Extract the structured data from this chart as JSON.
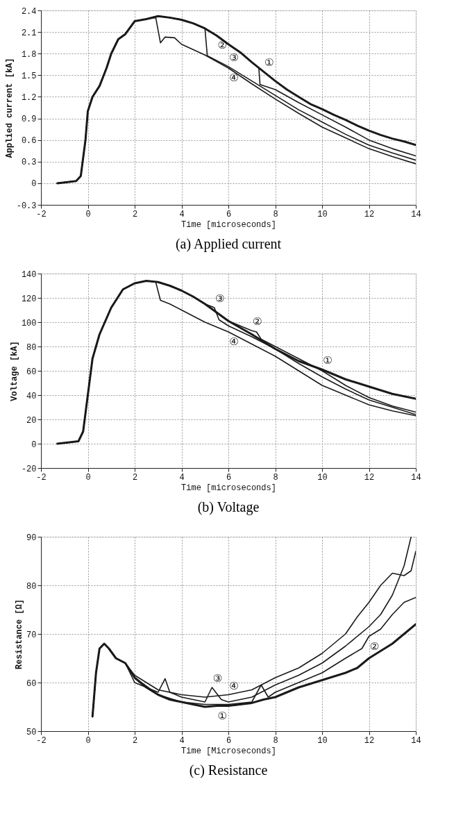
{
  "chart_data": [
    {
      "type": "line",
      "title": "(a) Applied current",
      "xlabel": "Time [microseconds]",
      "ylabel": "Applied current [kA]",
      "xlim": [
        -2,
        14
      ],
      "xticks": [
        -2,
        0,
        2,
        4,
        6,
        8,
        10,
        12,
        14
      ],
      "ylim": [
        -0.3,
        2.4
      ],
      "yticks": [
        -0.3,
        0,
        0.3,
        0.6,
        0.9,
        1.2,
        1.5,
        1.8,
        2.1,
        2.4
      ],
      "grid": true,
      "line_style": "solid",
      "series": [
        {
          "name": "①",
          "color": "#1a1a1a",
          "x": [
            -1.3,
            -0.5,
            -0.3,
            -0.1,
            0,
            0.2,
            0.5,
            0.8,
            1,
            1.3,
            1.6,
            2,
            2.5,
            3,
            3.5,
            4,
            4.5,
            5,
            5.5,
            6,
            6.5,
            7,
            7.5,
            8,
            8.5,
            9,
            9.5,
            10,
            10.5,
            11,
            11.5,
            12,
            12.5,
            13,
            13.5,
            14
          ],
          "values": [
            0,
            0.03,
            0.1,
            0.6,
            1.0,
            1.2,
            1.35,
            1.6,
            1.8,
            2.0,
            2.07,
            2.25,
            2.28,
            2.32,
            2.3,
            2.27,
            2.22,
            2.15,
            2.05,
            1.93,
            1.82,
            1.68,
            1.55,
            1.42,
            1.3,
            1.2,
            1.1,
            1.03,
            0.95,
            0.88,
            0.8,
            0.73,
            0.67,
            0.62,
            0.58,
            0.53
          ]
        },
        {
          "name": "②",
          "color": "#1a1a1a",
          "x": [
            -1.3,
            -0.5,
            -0.3,
            -0.1,
            0,
            0.2,
            0.5,
            0.8,
            1,
            1.3,
            1.6,
            2,
            2.5,
            3,
            3.5,
            4,
            4.5,
            5,
            5.5,
            6,
            6.5,
            7,
            7.3,
            7.35,
            8,
            9,
            10,
            11,
            12,
            13,
            14
          ],
          "values": [
            0,
            0.03,
            0.1,
            0.6,
            1.0,
            1.2,
            1.35,
            1.6,
            1.8,
            2.0,
            2.07,
            2.25,
            2.28,
            2.32,
            2.3,
            2.27,
            2.22,
            2.15,
            2.05,
            1.93,
            1.82,
            1.68,
            1.6,
            1.37,
            1.3,
            1.12,
            0.95,
            0.78,
            0.6,
            0.48,
            0.38
          ]
        },
        {
          "name": "③",
          "color": "#1a1a1a",
          "x": [
            -1.3,
            -0.5,
            -0.3,
            -0.1,
            0,
            0.2,
            0.5,
            0.8,
            1,
            1.3,
            1.6,
            2,
            2.5,
            3,
            3.5,
            4,
            4.5,
            5,
            5.1,
            6,
            7,
            8,
            9,
            10,
            11,
            12,
            13,
            14
          ],
          "values": [
            0,
            0.03,
            0.1,
            0.6,
            1.0,
            1.2,
            1.35,
            1.6,
            1.8,
            2.0,
            2.07,
            2.25,
            2.28,
            2.32,
            2.3,
            2.27,
            2.22,
            2.15,
            1.77,
            1.62,
            1.42,
            1.22,
            1.02,
            0.85,
            0.68,
            0.53,
            0.42,
            0.32
          ]
        },
        {
          "name": "④",
          "color": "#1a1a1a",
          "x": [
            -1.3,
            -0.5,
            -0.3,
            -0.1,
            0,
            0.2,
            0.5,
            0.8,
            1,
            1.3,
            1.6,
            2,
            2.5,
            2.9,
            3.1,
            3.3,
            3.7,
            4,
            5,
            6,
            7,
            8,
            9,
            10,
            11,
            12,
            13,
            14
          ],
          "values": [
            0,
            0.03,
            0.1,
            0.6,
            1.0,
            1.2,
            1.35,
            1.6,
            1.8,
            2.0,
            2.07,
            2.25,
            2.28,
            2.3,
            1.95,
            2.03,
            2.02,
            1.93,
            1.78,
            1.6,
            1.38,
            1.17,
            0.97,
            0.78,
            0.63,
            0.48,
            0.37,
            0.27
          ]
        }
      ]
    },
    {
      "type": "line",
      "title": "(b) Voltage",
      "xlabel": "Time [microseconds]",
      "ylabel": "Voltage [kA]",
      "xlim": [
        -2,
        14
      ],
      "xticks": [
        -2,
        0,
        2,
        4,
        6,
        8,
        10,
        12,
        14
      ],
      "ylim": [
        -20,
        140
      ],
      "yticks": [
        -20,
        0,
        20,
        40,
        60,
        80,
        100,
        120,
        140
      ],
      "grid": true,
      "line_style": "solid",
      "series": [
        {
          "name": "①",
          "color": "#1a1a1a",
          "x": [
            -1.3,
            -0.4,
            -0.2,
            0,
            0.2,
            0.5,
            1,
            1.5,
            2,
            2.5,
            3,
            3.5,
            4,
            4.5,
            5,
            5.5,
            6,
            7,
            8,
            9,
            10,
            11,
            12,
            13,
            14
          ],
          "values": [
            0,
            2,
            10,
            40,
            70,
            90,
            112,
            127,
            132,
            134,
            133,
            130,
            126,
            121,
            115,
            108,
            101,
            90,
            78,
            68,
            61,
            53,
            47,
            41,
            37
          ]
        },
        {
          "name": "②",
          "color": "#1a1a1a",
          "x": [
            -1.3,
            -0.4,
            -0.2,
            0,
            0.2,
            0.5,
            1,
            1.5,
            2,
            2.5,
            3,
            3.5,
            4,
            4.5,
            5,
            5.5,
            6,
            7,
            7.2,
            7.4,
            8,
            9,
            10,
            11,
            12,
            13,
            14
          ],
          "values": [
            0,
            2,
            10,
            40,
            70,
            90,
            112,
            127,
            132,
            134,
            133,
            130,
            126,
            121,
            115,
            108,
            101,
            93,
            92,
            86,
            80,
            70,
            60,
            48,
            38,
            31,
            26
          ]
        },
        {
          "name": "③",
          "color": "#1a1a1a",
          "x": [
            -1.3,
            -0.4,
            -0.2,
            0,
            0.2,
            0.5,
            1,
            1.5,
            2,
            2.5,
            3,
            3.5,
            4,
            4.5,
            5,
            5.4,
            5.6,
            6,
            7,
            8,
            9,
            10,
            11,
            12,
            13,
            14
          ],
          "values": [
            0,
            2,
            10,
            40,
            70,
            90,
            112,
            127,
            132,
            134,
            133,
            130,
            126,
            121,
            115,
            112,
            102,
            97,
            88,
            78,
            66,
            55,
            45,
            36,
            30,
            24
          ]
        },
        {
          "name": "④",
          "color": "#1a1a1a",
          "x": [
            -1.3,
            -0.4,
            -0.2,
            0,
            0.2,
            0.5,
            1,
            1.5,
            2,
            2.5,
            2.9,
            3.1,
            3.5,
            4,
            5,
            6,
            7,
            8,
            9,
            10,
            11,
            12,
            13,
            14
          ],
          "values": [
            0,
            2,
            10,
            40,
            70,
            90,
            112,
            127,
            132,
            134,
            133,
            118,
            115,
            110,
            100,
            92,
            82,
            72,
            60,
            48,
            40,
            32,
            27,
            23
          ]
        }
      ]
    },
    {
      "type": "line",
      "title": "(c) Resistance",
      "xlabel": "Time [Microseconds]",
      "ylabel": "Resistance [Ω]",
      "xlim": [
        -2,
        14
      ],
      "xticks": [
        -2,
        0,
        2,
        4,
        6,
        8,
        10,
        12,
        14
      ],
      "ylim": [
        50,
        90
      ],
      "yticks": [
        50,
        60,
        70,
        80,
        90
      ],
      "grid": true,
      "line_style": "solid",
      "series": [
        {
          "name": "①",
          "color": "#1a1a1a",
          "x": [
            0.2,
            0.35,
            0.5,
            0.7,
            0.9,
            1.2,
            1.6,
            2,
            2.5,
            3,
            3.5,
            4,
            4.5,
            5,
            5.5,
            6,
            6.5,
            7,
            7.5,
            8,
            8.5,
            9,
            10,
            11,
            11.5,
            12,
            12.5,
            13,
            13.5,
            14
          ],
          "values": [
            53,
            62,
            67,
            68,
            67,
            65,
            64,
            61,
            59,
            57.5,
            56.5,
            56,
            55.5,
            55,
            55.2,
            55.2,
            55.5,
            55.8,
            56.5,
            57,
            58,
            59,
            60.5,
            62,
            63,
            65,
            66.5,
            68,
            70,
            72
          ]
        },
        {
          "name": "②",
          "color": "#1a1a1a",
          "x": [
            0.2,
            0.35,
            0.5,
            0.7,
            0.9,
            1.2,
            1.6,
            2,
            3,
            4,
            5,
            6,
            7,
            7.4,
            7.7,
            8,
            9,
            10,
            11,
            11.7,
            12,
            12.5,
            13,
            13.5,
            14
          ],
          "values": [
            53,
            62,
            67,
            68,
            67,
            65,
            64,
            61,
            57.5,
            56,
            55.5,
            55.5,
            56,
            59.5,
            57,
            58,
            60,
            62,
            65,
            67,
            69.5,
            71,
            74,
            76.5,
            77.5
          ]
        },
        {
          "name": "③",
          "color": "#1a1a1a",
          "x": [
            0.2,
            0.35,
            0.5,
            0.7,
            0.9,
            1.2,
            1.6,
            2,
            3,
            3.3,
            3.5,
            4,
            5,
            5.3,
            5.7,
            6,
            7,
            8,
            9,
            10,
            11,
            12,
            12.5,
            13,
            13.5,
            13.8
          ],
          "values": [
            53,
            62,
            67,
            68,
            67,
            65,
            64,
            60,
            58,
            60.8,
            58,
            57,
            56,
            59,
            56.5,
            56,
            57,
            59.5,
            61.5,
            64,
            67.5,
            71.5,
            74,
            78,
            84,
            90
          ]
        },
        {
          "name": "④",
          "color": "#1a1a1a",
          "x": [
            0.2,
            0.35,
            0.5,
            0.7,
            0.9,
            1.2,
            1.6,
            2,
            3,
            4,
            5,
            6,
            7,
            8,
            9,
            10,
            11,
            11.5,
            12,
            12.5,
            13,
            13.5,
            13.8,
            14
          ],
          "values": [
            53,
            62,
            67,
            68,
            67,
            65,
            64,
            61.5,
            58.5,
            57.5,
            57,
            57.5,
            58.5,
            61,
            63,
            66,
            70,
            73.5,
            76.5,
            80,
            82.5,
            82,
            83,
            87
          ]
        }
      ]
    }
  ]
}
